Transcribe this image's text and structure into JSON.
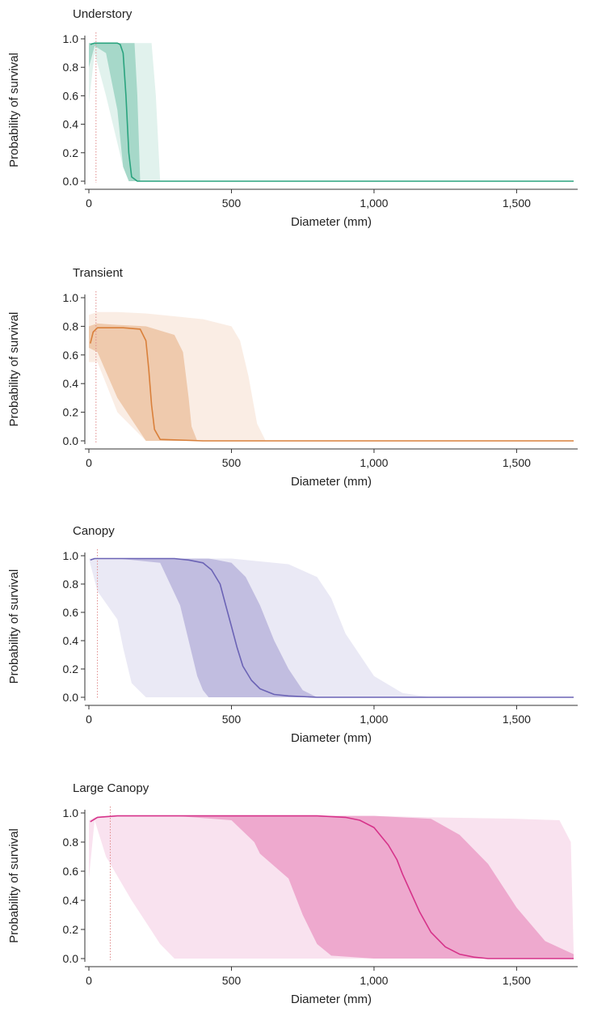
{
  "chart_data": [
    {
      "type": "line",
      "title": "Understory",
      "xlabel": "Diameter (mm)",
      "ylabel": "Probability of survival",
      "xlim": [
        0,
        1700
      ],
      "ylim": [
        0,
        1
      ],
      "xticks": [
        0,
        500,
        1000,
        1500
      ],
      "xtick_labels": [
        "0",
        "500",
        "1,000",
        "1,500"
      ],
      "yticks": [
        0,
        0.2,
        0.4,
        0.6,
        0.8,
        1.0
      ],
      "ytick_labels": [
        "0.0",
        "0.2",
        "0.4",
        "0.6",
        "0.8",
        "1.0"
      ],
      "color": "#2aa37e",
      "reference_line_x": 25,
      "series": [
        {
          "x": [
            5,
            20,
            60,
            100,
            110,
            120,
            130,
            140,
            150,
            170,
            200,
            400,
            800,
            1200,
            1700
          ],
          "y": [
            0.96,
            0.97,
            0.97,
            0.97,
            0.96,
            0.9,
            0.6,
            0.2,
            0.03,
            0.0,
            0.0,
            0.0,
            0.0,
            0.0,
            0.0
          ]
        }
      ],
      "bands": [
        {
          "level": "outer",
          "x": [
            0,
            20,
            60,
            120,
            160,
            190,
            220,
            235,
            250,
            1700
          ],
          "upper": [
            0.97,
            0.97,
            0.97,
            0.97,
            0.97,
            0.97,
            0.97,
            0.6,
            0.0,
            0.0
          ],
          "lower": [
            0.55,
            0.9,
            0.6,
            0.1,
            0.0,
            0.0,
            0.0,
            0.0,
            0.0,
            0.0
          ]
        },
        {
          "level": "inner",
          "x": [
            0,
            20,
            60,
            100,
            120,
            140,
            160,
            170,
            180,
            1700
          ],
          "upper": [
            0.97,
            0.97,
            0.97,
            0.97,
            0.97,
            0.97,
            0.97,
            0.6,
            0.0,
            0.0
          ],
          "lower": [
            0.8,
            0.95,
            0.9,
            0.5,
            0.1,
            0.0,
            0.0,
            0.0,
            0.0,
            0.0
          ]
        }
      ]
    },
    {
      "type": "line",
      "title": "Transient",
      "xlabel": "Diameter (mm)",
      "ylabel": "Probability of survival",
      "xlim": [
        0,
        1700
      ],
      "ylim": [
        0,
        1
      ],
      "xticks": [
        0,
        500,
        1000,
        1500
      ],
      "xtick_labels": [
        "0",
        "500",
        "1,000",
        "1,500"
      ],
      "yticks": [
        0,
        0.2,
        0.4,
        0.6,
        0.8,
        1.0
      ],
      "ytick_labels": [
        "0.0",
        "0.2",
        "0.4",
        "0.6",
        "0.8",
        "1.0"
      ],
      "color": "#d9803b",
      "reference_line_x": 25,
      "series": [
        {
          "x": [
            5,
            15,
            30,
            60,
            120,
            180,
            200,
            210,
            220,
            230,
            250,
            400,
            800,
            1200,
            1700
          ],
          "y": [
            0.68,
            0.76,
            0.79,
            0.79,
            0.79,
            0.78,
            0.7,
            0.5,
            0.25,
            0.08,
            0.01,
            0.0,
            0.0,
            0.0,
            0.0
          ]
        }
      ],
      "bands": [
        {
          "level": "outer",
          "x": [
            0,
            30,
            100,
            200,
            300,
            400,
            500,
            530,
            560,
            590,
            620,
            1700
          ],
          "upper": [
            0.88,
            0.9,
            0.9,
            0.89,
            0.87,
            0.85,
            0.8,
            0.7,
            0.45,
            0.12,
            0.0,
            0.0
          ],
          "lower": [
            0.55,
            0.55,
            0.2,
            0.0,
            0.0,
            0.0,
            0.0,
            0.0,
            0.0,
            0.0,
            0.0,
            0.0
          ]
        },
        {
          "level": "inner",
          "x": [
            0,
            30,
            100,
            200,
            300,
            330,
            350,
            360,
            380,
            1700
          ],
          "upper": [
            0.8,
            0.82,
            0.81,
            0.8,
            0.74,
            0.62,
            0.3,
            0.1,
            0.0,
            0.0
          ],
          "lower": [
            0.65,
            0.62,
            0.3,
            0.0,
            0.0,
            0.0,
            0.0,
            0.0,
            0.0,
            0.0
          ]
        }
      ]
    },
    {
      "type": "line",
      "title": "Canopy",
      "xlabel": "Diameter (mm)",
      "ylabel": "Probability of survival",
      "xlim": [
        0,
        1700
      ],
      "ylim": [
        0,
        1
      ],
      "xticks": [
        0,
        500,
        1000,
        1500
      ],
      "xtick_labels": [
        "0",
        "500",
        "1,000",
        "1,500"
      ],
      "yticks": [
        0,
        0.2,
        0.4,
        0.6,
        0.8,
        1.0
      ],
      "ytick_labels": [
        "0.0",
        "0.2",
        "0.4",
        "0.6",
        "0.8",
        "1.0"
      ],
      "color": "#6b63b5",
      "reference_line_x": 30,
      "series": [
        {
          "x": [
            5,
            20,
            100,
            200,
            300,
            350,
            400,
            430,
            460,
            480,
            500,
            520,
            540,
            570,
            600,
            650,
            700,
            800,
            1000,
            1700
          ],
          "y": [
            0.97,
            0.98,
            0.98,
            0.98,
            0.98,
            0.97,
            0.95,
            0.9,
            0.8,
            0.65,
            0.5,
            0.35,
            0.22,
            0.12,
            0.06,
            0.02,
            0.01,
            0.0,
            0.0,
            0.0
          ]
        }
      ],
      "bands": [
        {
          "level": "outer",
          "x": [
            0,
            30,
            100,
            120,
            150,
            200,
            500,
            700,
            800,
            850,
            900,
            1000,
            1100,
            1200,
            1700
          ],
          "upper": [
            0.98,
            0.98,
            0.98,
            0.98,
            0.98,
            0.98,
            0.98,
            0.94,
            0.85,
            0.7,
            0.45,
            0.15,
            0.03,
            0.0,
            0.0
          ],
          "lower": [
            0.98,
            0.75,
            0.55,
            0.35,
            0.1,
            0.0,
            0.0,
            0.0,
            0.0,
            0.0,
            0.0,
            0.0,
            0.0,
            0.0,
            0.0
          ]
        },
        {
          "level": "inner",
          "x": [
            0,
            100,
            250,
            320,
            350,
            380,
            400,
            420,
            450,
            500,
            550,
            600,
            650,
            700,
            750,
            800,
            1700
          ],
          "upper": [
            0.98,
            0.98,
            0.98,
            0.98,
            0.98,
            0.98,
            0.98,
            0.98,
            0.97,
            0.95,
            0.85,
            0.65,
            0.4,
            0.2,
            0.05,
            0.0,
            0.0
          ],
          "lower": [
            0.98,
            0.98,
            0.95,
            0.65,
            0.4,
            0.15,
            0.05,
            0.0,
            0.0,
            0.0,
            0.0,
            0.0,
            0.0,
            0.0,
            0.0,
            0.0,
            0.0
          ]
        }
      ]
    },
    {
      "type": "line",
      "title": "Large Canopy",
      "xlabel": "Diameter (mm)",
      "ylabel": "Probability of survival",
      "xlim": [
        0,
        1700
      ],
      "ylim": [
        0,
        1
      ],
      "xticks": [
        0,
        500,
        1000,
        1500
      ],
      "xtick_labels": [
        "0",
        "500",
        "1,000",
        "1,500"
      ],
      "yticks": [
        0,
        0.2,
        0.4,
        0.6,
        0.8,
        1.0
      ],
      "ytick_labels": [
        "0.0",
        "0.2",
        "0.4",
        "0.6",
        "0.8",
        "1.0"
      ],
      "color": "#d6338a",
      "reference_line_x": 75,
      "series": [
        {
          "x": [
            5,
            30,
            100,
            500,
            800,
            900,
            950,
            1000,
            1050,
            1080,
            1100,
            1130,
            1160,
            1200,
            1250,
            1300,
            1350,
            1400,
            1500,
            1700
          ],
          "y": [
            0.94,
            0.97,
            0.98,
            0.98,
            0.98,
            0.97,
            0.95,
            0.9,
            0.78,
            0.68,
            0.58,
            0.45,
            0.32,
            0.18,
            0.08,
            0.03,
            0.01,
            0.0,
            0.0,
            0.0
          ]
        }
      ],
      "bands": [
        {
          "level": "outer",
          "x": [
            0,
            20,
            60,
            150,
            200,
            250,
            300,
            400,
            600,
            800,
            1000,
            1200,
            1500,
            1650,
            1690,
            1700
          ],
          "upper": [
            0.95,
            0.97,
            0.98,
            0.98,
            0.98,
            0.98,
            0.98,
            0.98,
            0.98,
            0.98,
            0.98,
            0.97,
            0.96,
            0.95,
            0.8,
            0.05
          ],
          "lower": [
            0.55,
            0.95,
            0.7,
            0.4,
            0.25,
            0.1,
            0.0,
            0.0,
            0.0,
            0.0,
            0.0,
            0.0,
            0.0,
            0.0,
            0.0,
            0.0
          ]
        },
        {
          "level": "inner",
          "x": [
            0,
            150,
            300,
            500,
            580,
            600,
            700,
            750,
            800,
            850,
            1000,
            1200,
            1300,
            1400,
            1500,
            1600,
            1700
          ],
          "upper": [
            0.98,
            0.98,
            0.98,
            0.98,
            0.98,
            0.98,
            0.98,
            0.98,
            0.98,
            0.98,
            0.98,
            0.96,
            0.85,
            0.65,
            0.35,
            0.12,
            0.03
          ],
          "lower": [
            0.98,
            0.98,
            0.98,
            0.95,
            0.8,
            0.72,
            0.55,
            0.3,
            0.1,
            0.02,
            0.0,
            0.0,
            0.0,
            0.0,
            0.0,
            0.0,
            0.0
          ]
        }
      ]
    }
  ]
}
